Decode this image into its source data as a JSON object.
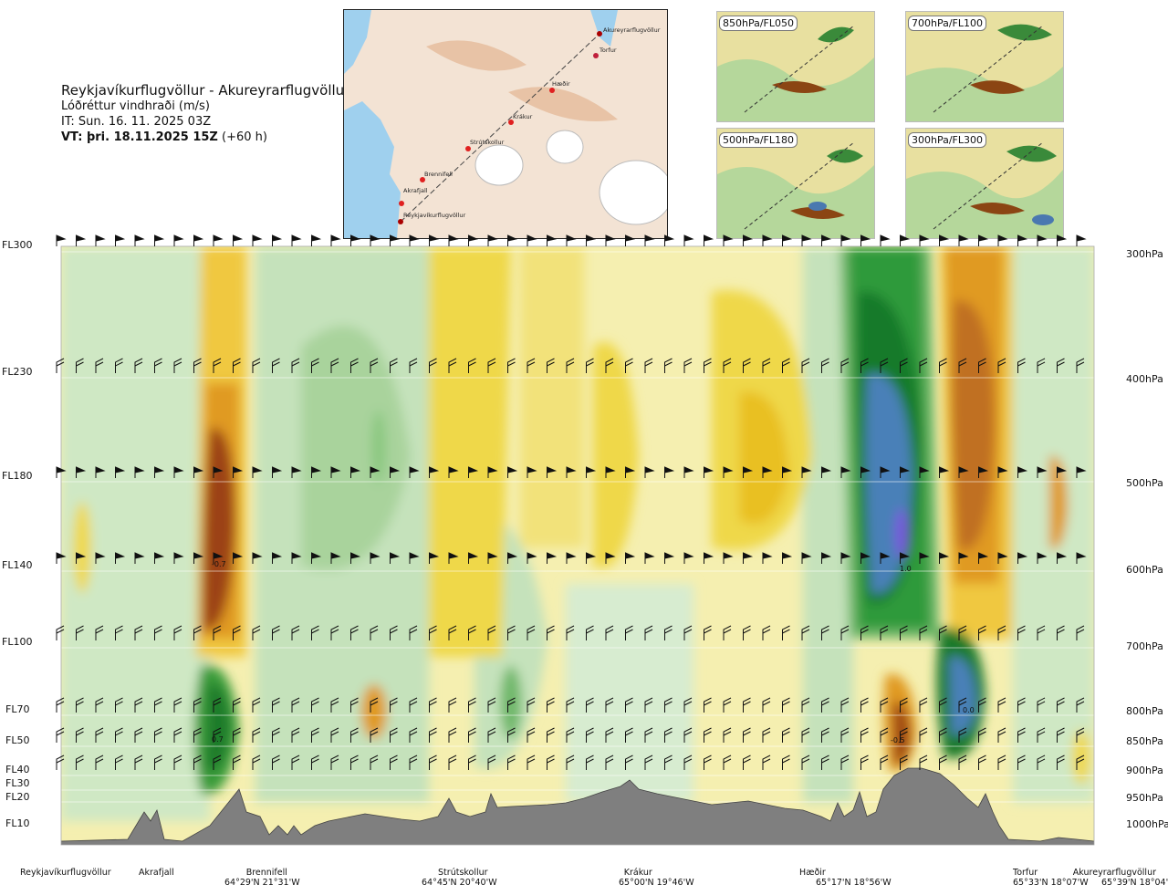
{
  "header": {
    "title": "Reykjavíkurflugvöllur - Akureyrarflugvöllur",
    "variable": "Lóðréttur vindhraði (m/s)",
    "init_time": "IT: Sun. 16. 11. 2025 03Z",
    "valid_prefix": "VT: þri. 18.11.2025 15Z",
    "valid_suffix": "(+60 h)"
  },
  "map": {
    "places": [
      {
        "name": "Akureyrarflugvöllur"
      },
      {
        "name": "Torfur"
      },
      {
        "name": "Hæðir"
      },
      {
        "name": "Krákur"
      },
      {
        "name": "Strútskollur"
      },
      {
        "name": "Brennifell"
      },
      {
        "name": "Akrafjall"
      },
      {
        "name": "Reykjavíkurflugvöllur"
      }
    ]
  },
  "thumbnails": [
    {
      "label": "850hPa/FL050"
    },
    {
      "label": "700hPa/FL100"
    },
    {
      "label": "500hPa/FL180"
    },
    {
      "label": "300hPa/FL300"
    }
  ],
  "left_axis": [
    "FL300",
    "FL230",
    "FL180",
    "FL140",
    "FL100",
    "FL70",
    "FL50",
    "FL40",
    "FL30",
    "FL20",
    "FL10"
  ],
  "right_axis": [
    "300hPa",
    "400hPa",
    "500hPa",
    "600hPa",
    "700hPa",
    "800hPa",
    "850hPa",
    "900hPa",
    "950hPa",
    "1000hPa"
  ],
  "contour_labels": [
    "-0.7",
    "0.7",
    "1.0",
    "0.0",
    "-0.5"
  ],
  "bottom_axis": [
    {
      "name": "Reykjavíkurflugvöllur",
      "coord": ""
    },
    {
      "name": "Akrafjall",
      "coord": ""
    },
    {
      "name": "Brennifell",
      "coord": "64°29'N 21°31'W"
    },
    {
      "name": "Strútskollur",
      "coord": "64°45'N 20°40'W"
    },
    {
      "name": "Krákur",
      "coord": "65°00'N 19°46'W"
    },
    {
      "name": "Hæðir",
      "coord": "65°17'N 18°56'W"
    },
    {
      "name": "Torfur",
      "coord": "65°33'N 18°07'W"
    },
    {
      "name": "Akureyrarflugvöllur",
      "coord": "65°39'N 18°04'W"
    }
  ]
}
